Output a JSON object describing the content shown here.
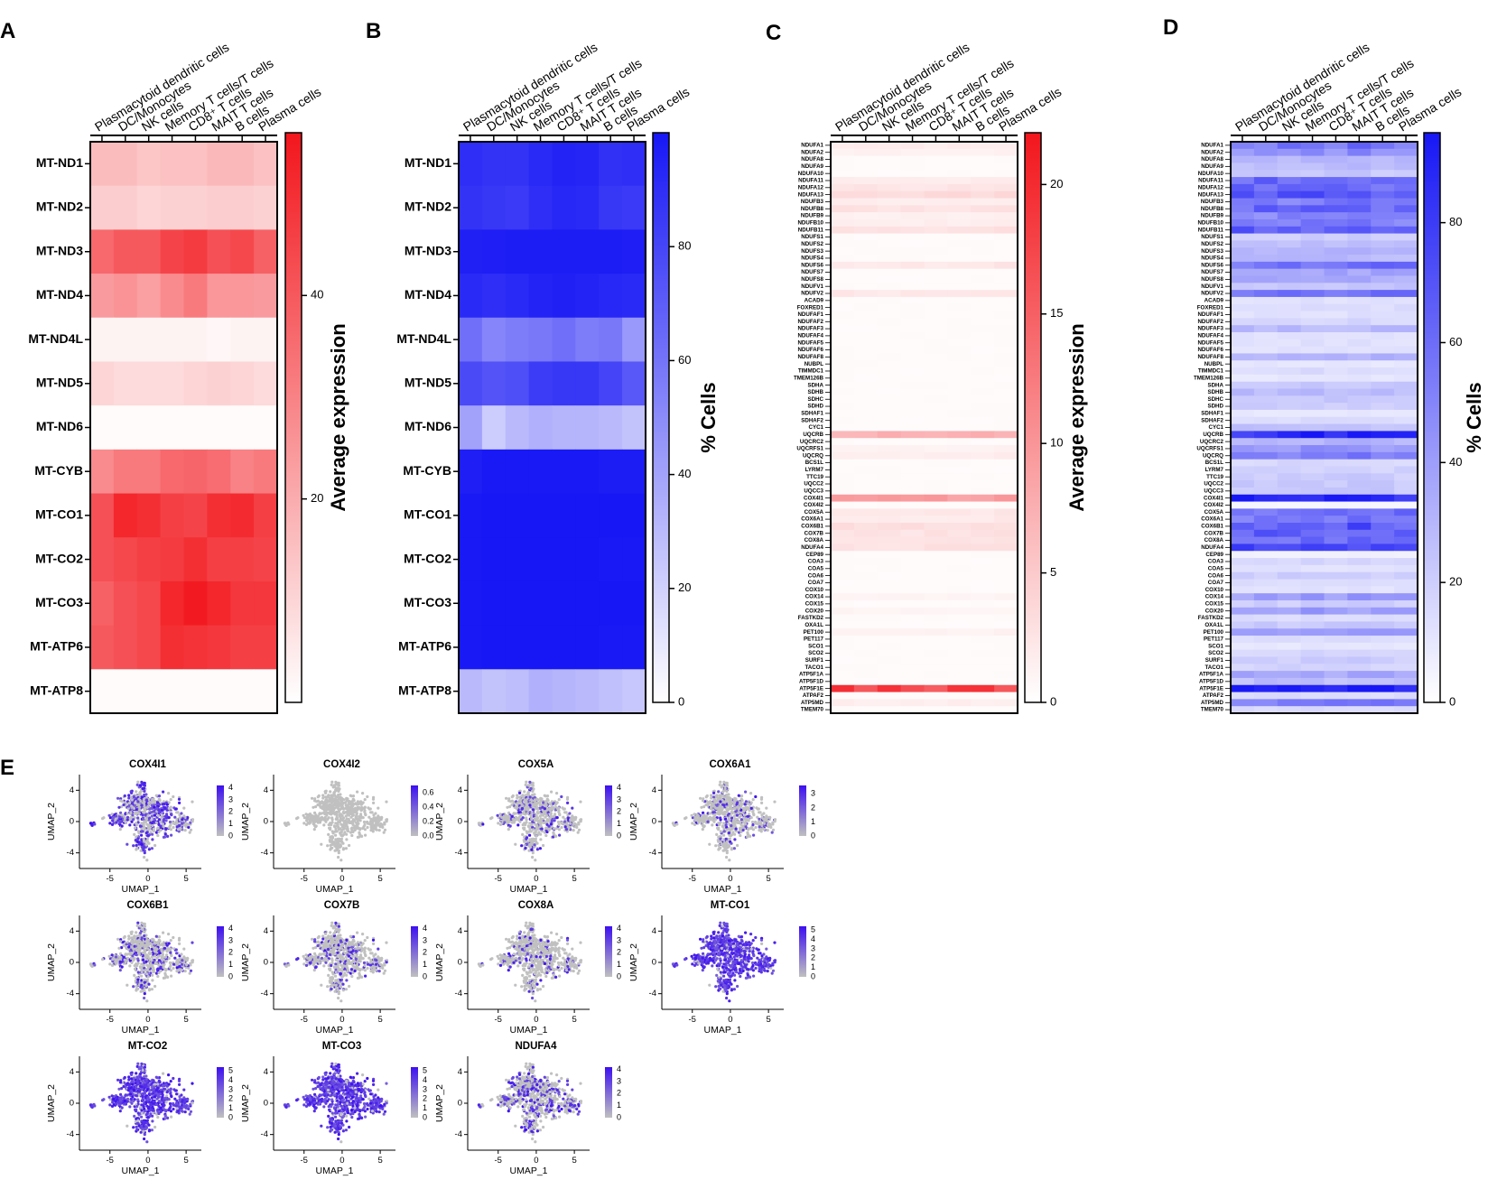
{
  "figure": {
    "panel_letters": [
      "A",
      "B",
      "C",
      "D",
      "E"
    ]
  },
  "colors": {
    "red_max": "#f2161c",
    "blue_max": "#1717f5",
    "umap_low": "#c0c0c0",
    "umap_high": "#3d10f0",
    "frame": "#000000"
  },
  "chart_data": [
    {
      "id": "A",
      "type": "heatmap",
      "colorscale": "white-red",
      "columns": [
        "Plasmacytoid dendritic cells",
        "DC/Monocytes",
        "NK cells",
        "Memory T cells/T cells",
        "CD8+ T cells",
        "MAIT T cells",
        "B cells",
        "Plasma cells"
      ],
      "rows": [
        "MT-ND1",
        "MT-ND2",
        "MT-ND3",
        "MT-ND4",
        "MT-ND4L",
        "MT-ND5",
        "MT-ND6",
        "MT-CYB",
        "MT-CO1",
        "MT-CO2",
        "MT-CO3",
        "MT-ATP6",
        "MT-ATP8"
      ],
      "values": [
        [
          16,
          16,
          14,
          15,
          15,
          17,
          17,
          15
        ],
        [
          12,
          12,
          10,
          11,
          11,
          12,
          12,
          11
        ],
        [
          36,
          40,
          40,
          45,
          47,
          42,
          44,
          38
        ],
        [
          24,
          26,
          23,
          28,
          32,
          25,
          25,
          24
        ],
        [
          3,
          3,
          3,
          3,
          3,
          2,
          3,
          3
        ],
        [
          10,
          9,
          9,
          9,
          10,
          11,
          10,
          9
        ],
        [
          1,
          1,
          1,
          1,
          1,
          1,
          1,
          1
        ],
        [
          28,
          32,
          32,
          36,
          37,
          35,
          30,
          32
        ],
        [
          42,
          52,
          50,
          46,
          45,
          50,
          51,
          46
        ],
        [
          42,
          44,
          46,
          47,
          50,
          46,
          46,
          45
        ],
        [
          38,
          42,
          44,
          52,
          55,
          52,
          48,
          48
        ],
        [
          40,
          42,
          44,
          50,
          49,
          48,
          46,
          46
        ],
        [
          1,
          1,
          1,
          1,
          1,
          1,
          1,
          1
        ]
      ],
      "colorbar": {
        "label": "Average expression",
        "ticks": [
          20,
          40
        ],
        "range": [
          0,
          56
        ]
      }
    },
    {
      "id": "B",
      "type": "heatmap",
      "colorscale": "white-blue",
      "columns": [
        "Plasmacytoid dendritic cells",
        "DC/Monocytes",
        "NK cells",
        "Memory T cells/T cells",
        "CD8+ T cells",
        "MAIT T cells",
        "B cells",
        "Plasma cells"
      ],
      "rows": [
        "MT-ND1",
        "MT-ND2",
        "MT-ND3",
        "MT-ND4",
        "MT-ND4L",
        "MT-ND5",
        "MT-ND6",
        "MT-CYB",
        "MT-CO1",
        "MT-CO2",
        "MT-CO3",
        "MT-ATP6",
        "MT-ATP8"
      ],
      "values": [
        [
          90,
          88,
          88,
          92,
          95,
          94,
          89,
          90
        ],
        [
          88,
          86,
          85,
          90,
          93,
          92,
          86,
          85
        ],
        [
          96,
          97,
          98,
          98,
          98,
          98,
          98,
          97
        ],
        [
          92,
          90,
          92,
          95,
          96,
          95,
          93,
          92
        ],
        [
          62,
          52,
          56,
          58,
          62,
          56,
          58,
          44
        ],
        [
          78,
          74,
          76,
          84,
          86,
          86,
          80,
          72
        ],
        [
          40,
          22,
          30,
          34,
          32,
          32,
          30,
          26
        ],
        [
          97,
          99,
          99,
          99,
          99,
          99,
          98,
          98
        ],
        [
          99,
          100,
          100,
          100,
          100,
          100,
          100,
          100
        ],
        [
          99,
          100,
          100,
          100,
          100,
          100,
          99,
          99
        ],
        [
          99,
          100,
          100,
          100,
          100,
          100,
          100,
          100
        ],
        [
          99,
          100,
          100,
          100,
          100,
          100,
          99,
          99
        ],
        [
          30,
          26,
          28,
          34,
          32,
          30,
          27,
          24
        ]
      ],
      "colorbar": {
        "label": "% Cells",
        "ticks": [
          0,
          20,
          40,
          60,
          80
        ],
        "range": [
          0,
          100
        ]
      }
    },
    {
      "id": "C",
      "type": "heatmap",
      "colorscale": "white-red",
      "columns": [
        "Plasmacytoid dendritic cells",
        "DC/Monocytes",
        "NK cells",
        "Memory T cells/T cells",
        "CD8+ T cells",
        "MAIT T cells",
        "B cells",
        "Plasma cells"
      ],
      "rows": [
        "NDUFA1",
        "NDUFA2",
        "NDUFA8",
        "NDUFA9",
        "NDUFA10",
        "NDUFA11",
        "NDUFA12",
        "NDUFA13",
        "NDUFB3",
        "NDUFB8",
        "NDUFB9",
        "NDUFB10",
        "NDUFB11",
        "NDUFS1",
        "NDUFS2",
        "NDUFS3",
        "NDUFS4",
        "NDUFS6",
        "NDUFS7",
        "NDUFS8",
        "NDUFV1",
        "NDUFV2",
        "ACAD9",
        "FOXRED1",
        "NDUFAF1",
        "NDUFAF2",
        "NDUFAF3",
        "NDUFAF4",
        "NDUFAF5",
        "NDUFAF6",
        "NDUFAF8",
        "NUBPL",
        "TIMMDC1",
        "TMEM126B",
        "SDHA",
        "SDHB",
        "SDHC",
        "SDHD",
        "SDHAF1",
        "SDHAF2",
        "CYC1",
        "UQCRB",
        "UQCRC2",
        "UQCRFS1",
        "UQCRQ",
        "BCS1L",
        "LYRM7",
        "TTC19",
        "UQCC2",
        "UQCC3",
        "COX4I1",
        "COX4I2",
        "COX5A",
        "COX6A1",
        "COX6B1",
        "COX7B",
        "COX8A",
        "NDUFA4",
        "CEP89",
        "COA3",
        "COA5",
        "COA6",
        "COA7",
        "COX10",
        "COX14",
        "COX15",
        "COX20",
        "FASTKD2",
        "OXA1L",
        "PET100",
        "PET117",
        "SCO1",
        "SCO2",
        "SURF1",
        "TACO1",
        "ATP5F1A",
        "ATP5F1D",
        "ATP5F1E",
        "ATPAF2",
        "ATP5MD",
        "TMEM70"
      ],
      "value_range": [
        0,
        22
      ],
      "colorbar": {
        "label": "Average expression",
        "ticks": [
          0,
          5,
          10,
          15,
          20
        ],
        "range": [
          0,
          22
        ]
      }
    },
    {
      "id": "D",
      "type": "heatmap",
      "colorscale": "white-blue",
      "columns": [
        "Plasmacytoid dendritic cells",
        "DC/Monocytes",
        "NK cells",
        "Memory T cells/T cells",
        "CD8+ T cells",
        "MAIT T cells",
        "B cells",
        "Plasma cells"
      ],
      "rows": [
        "NDUFA1",
        "NDUFA2",
        "NDUFA8",
        "NDUFA9",
        "NDUFA10",
        "NDUFA11",
        "NDUFA12",
        "NDUFA13",
        "NDUFB3",
        "NDUFB8",
        "NDUFB9",
        "NDUFB10",
        "NDUFB11",
        "NDUFS1",
        "NDUFS2",
        "NDUFS3",
        "NDUFS4",
        "NDUFS6",
        "NDUFS7",
        "NDUFS8",
        "NDUFV1",
        "NDUFV2",
        "ACAD9",
        "FOXRED1",
        "NDUFAF1",
        "NDUFAF2",
        "NDUFAF3",
        "NDUFAF4",
        "NDUFAF5",
        "NDUFAF6",
        "NDUFAF8",
        "NUBPL",
        "TIMMDC1",
        "TMEM126B",
        "SDHA",
        "SDHB",
        "SDHC",
        "SDHD",
        "SDHAF1",
        "SDHAF2",
        "CYC1",
        "UQCRB",
        "UQCRC2",
        "UQCRFS1",
        "UQCRQ",
        "BCS1L",
        "LYRM7",
        "TTC19",
        "UQCC2",
        "UQCC3",
        "COX4I1",
        "COX4I2",
        "COX5A",
        "COX6A1",
        "COX6B1",
        "COX7B",
        "COX8A",
        "NDUFA4",
        "CEP89",
        "COA3",
        "COA5",
        "COA6",
        "COA7",
        "COX10",
        "COX14",
        "COX15",
        "COX20",
        "FASTKD2",
        "OXA1L",
        "PET100",
        "PET117",
        "SCO1",
        "SCO2",
        "SURF1",
        "TACO1",
        "ATP5F1A",
        "ATP5F1D",
        "ATP5F1E",
        "ATPAF2",
        "ATP5MD",
        "TMEM70"
      ],
      "value_range": [
        0,
        95
      ],
      "colorbar": {
        "label": "% Cells",
        "ticks": [
          0,
          20,
          40,
          60,
          80
        ],
        "range": [
          0,
          95
        ]
      }
    },
    {
      "id": "E",
      "type": "scatter",
      "kind": "UMAP feature plots",
      "xlabel": "UMAP_1",
      "ylabel": "UMAP_2",
      "xticks": [
        -5,
        0,
        5
      ],
      "yticks": [
        4,
        0,
        -4
      ],
      "xlim": [
        -9,
        7
      ],
      "ylim": [
        -6,
        6
      ],
      "panels": [
        {
          "gene": "COX4I1",
          "density": 0.55,
          "legend": [
            "4",
            "3",
            "2",
            "1",
            "0"
          ],
          "max": 4.2
        },
        {
          "gene": "COX4I2",
          "density": 0.0,
          "legend": [
            "0.6",
            "0.4",
            "0.2",
            "0.0"
          ],
          "max": 0.7
        },
        {
          "gene": "COX5A",
          "density": 0.2,
          "legend": [
            "4",
            "3",
            "2",
            "1",
            "0"
          ],
          "max": 4.2
        },
        {
          "gene": "COX6A1",
          "density": 0.22,
          "legend": [
            "3",
            "2",
            "1",
            "0"
          ],
          "max": 3.6
        },
        {
          "gene": "COX6B1",
          "density": 0.3,
          "legend": [
            "4",
            "3",
            "2",
            "1",
            "0"
          ],
          "max": 4.2
        },
        {
          "gene": "COX7B",
          "density": 0.25,
          "legend": [
            "4",
            "3",
            "2",
            "1",
            "0"
          ],
          "max": 4.2
        },
        {
          "gene": "COX8A",
          "density": 0.18,
          "legend": [
            "4",
            "3",
            "2",
            "1",
            "0"
          ],
          "max": 4.2
        },
        {
          "gene": "MT-CO1",
          "density": 0.93,
          "legend": [
            "5",
            "4",
            "3",
            "2",
            "1",
            "0"
          ],
          "max": 5.4
        },
        {
          "gene": "MT-CO2",
          "density": 0.9,
          "legend": [
            "5",
            "4",
            "3",
            "2",
            "1",
            "0"
          ],
          "max": 5.4
        },
        {
          "gene": "MT-CO3",
          "density": 0.92,
          "legend": [
            "5",
            "4",
            "3",
            "2",
            "1",
            "0"
          ],
          "max": 5.4
        },
        {
          "gene": "NDUFA4",
          "density": 0.35,
          "legend": [
            "4",
            "3",
            "2",
            "1",
            "0"
          ],
          "max": 4.2
        }
      ]
    }
  ]
}
